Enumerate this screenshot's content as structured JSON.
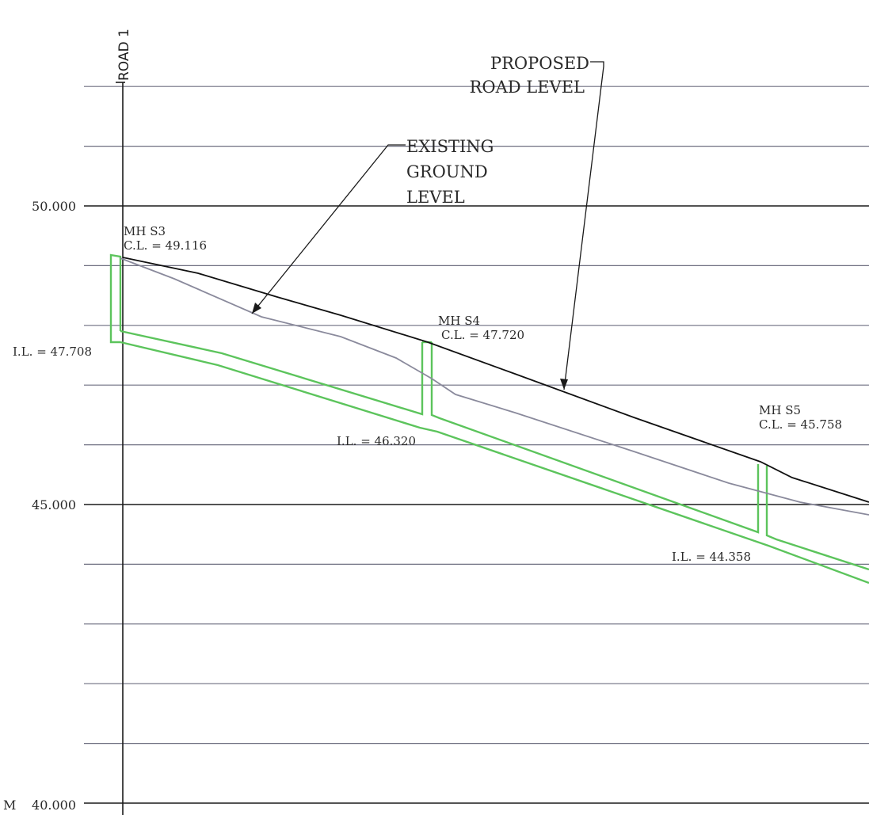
{
  "colors": {
    "grid_major": "#1a1a1a",
    "grid_minor": "#6e6f80",
    "proposed_road": "#111111",
    "existing_ground": "#8a8a9c",
    "pipe": "#5cc45c",
    "leader": "#1a1a1a",
    "paper": "#ffffff"
  },
  "section": {
    "road_label": "ROAD 1",
    "level_labels": [
      {
        "value": 50.0,
        "text": "50.000"
      },
      {
        "value": 45.0,
        "text": "45.000"
      },
      {
        "value": 40.0,
        "text": "40.000",
        "prefix": "M"
      }
    ],
    "minor_interval": 1.0
  },
  "callouts": {
    "proposed_road": {
      "line1": "PROPOSED",
      "line2": "ROAD LEVEL"
    },
    "existing_ground": {
      "line1": "EXISTING",
      "line2": "GROUND",
      "line3": "LEVEL"
    }
  },
  "manholes": [
    {
      "name": "MH S3",
      "cl": "C.L. = 49.116",
      "il": "I.L. = 47.708"
    },
    {
      "name": "MH S4",
      "cl": "C.L. = 47.720",
      "il": "I.L. = 46.320"
    },
    {
      "name": "MH S5",
      "cl": "C.L. = 45.758",
      "il": "I.L. = 44.358"
    }
  ]
}
